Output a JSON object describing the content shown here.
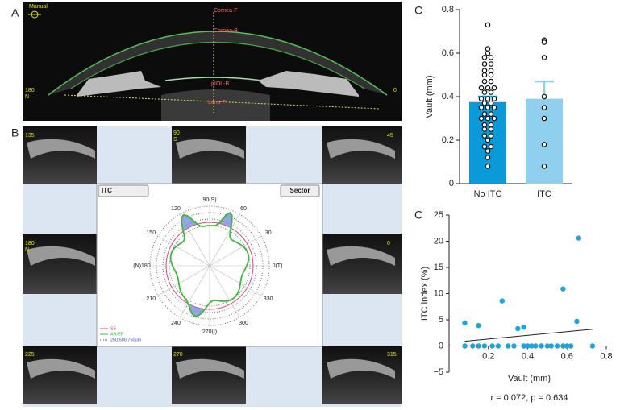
{
  "panel_labels": [
    "A",
    "B"
  ],
  "oct_labels": [
    "Manual",
    "Cornea-F",
    "Cornea-B",
    "pIOL-B",
    "Lens-F",
    "180",
    "N",
    "0",
    "135",
    "90",
    "S",
    "45",
    "180",
    "N",
    "0",
    "225",
    "270",
    "315"
  ],
  "polar_plot": {
    "buttons": [
      "ITC",
      "Sector"
    ],
    "angle_labels": [
      "90(S)",
      "60",
      "30",
      "0(T)",
      "330",
      "300",
      "270(I)",
      "240",
      "210",
      "(N)180",
      "150",
      "120"
    ],
    "legend": [
      "SS",
      "AR/EP",
      "250:500:750um"
    ]
  },
  "chart_data": [
    {
      "type": "bar",
      "panel": "C",
      "ylabel": "Vault (mm)",
      "categories": [
        "No ITC",
        "ITC"
      ],
      "values": [
        0.375,
        0.39
      ],
      "errors": [
        0.025,
        0.08
      ],
      "colors": [
        "#0a9ad8",
        "#8fd0ef"
      ],
      "points": [
        [
          0.73,
          0.62,
          0.6,
          0.58,
          0.58,
          0.55,
          0.55,
          0.52,
          0.52,
          0.5,
          0.5,
          0.47,
          0.47,
          0.44,
          0.44,
          0.44,
          0.42,
          0.42,
          0.39,
          0.39,
          0.39,
          0.37,
          0.37,
          0.35,
          0.35,
          0.35,
          0.32,
          0.32,
          0.3,
          0.3,
          0.3,
          0.27,
          0.27,
          0.25,
          0.25,
          0.22,
          0.22,
          0.2,
          0.17,
          0.17,
          0.15,
          0.12,
          0.08
        ],
        [
          0.66,
          0.65,
          0.58,
          0.4,
          0.35,
          0.3,
          0.18,
          0.08
        ]
      ],
      "ylim": [
        0,
        0.8
      ],
      "yticks": [
        0,
        0.2,
        0.4,
        0.6,
        0.8
      ]
    },
    {
      "type": "scatter",
      "panel": "C",
      "xlabel": "Vault (mm)",
      "ylabel": "ITC index (%)",
      "annotation": "r = 0.072, p = 0.634",
      "color": "#1aa6dd",
      "x": [
        0.08,
        0.08,
        0.12,
        0.15,
        0.15,
        0.18,
        0.22,
        0.25,
        0.27,
        0.3,
        0.33,
        0.35,
        0.38,
        0.38,
        0.4,
        0.42,
        0.44,
        0.47,
        0.5,
        0.52,
        0.55,
        0.58,
        0.58,
        0.6,
        0.62,
        0.65,
        0.66,
        0.73
      ],
      "y": [
        4.4,
        0,
        0,
        3.9,
        0,
        0,
        0,
        0,
        8.6,
        0,
        0,
        3.3,
        3.6,
        0,
        0,
        0,
        0,
        0,
        0,
        0,
        0,
        10.9,
        0,
        0,
        0,
        4.7,
        20.6,
        0
      ],
      "fit_line": {
        "x": [
          0.08,
          0.73
        ],
        "y": [
          0.9,
          3.2
        ]
      },
      "xlim": [
        0,
        0.8
      ],
      "xticks": [
        0.2,
        0.4,
        0.6,
        0.8
      ],
      "ylim": [
        -5,
        25
      ],
      "yticks": [
        {
          "value": -5,
          "label": "−5"
        },
        0,
        5,
        10,
        15,
        20,
        25
      ]
    }
  ]
}
